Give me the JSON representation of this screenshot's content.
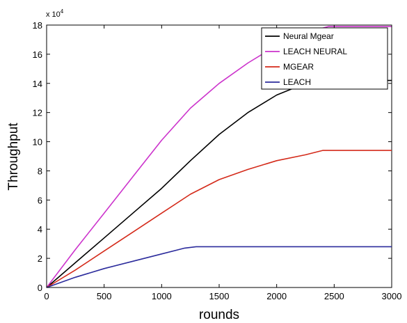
{
  "chart_data": {
    "type": "line",
    "xlabel": "rounds",
    "ylabel": "Throughput",
    "y_exponent_base": "x 10",
    "y_exponent_power": "4",
    "xlim": [
      0,
      3000
    ],
    "ylim": [
      0,
      18
    ],
    "xticks": [
      0,
      500,
      1000,
      1500,
      2000,
      2500,
      3000
    ],
    "yticks": [
      0,
      2,
      4,
      6,
      8,
      10,
      12,
      14,
      16,
      18
    ],
    "grid": false,
    "legend_position": "top-right",
    "series": [
      {
        "name": "Neural Mgear",
        "color": "#000000",
        "x": [
          0,
          250,
          500,
          750,
          1000,
          1250,
          1500,
          1750,
          2000,
          2250,
          2450,
          2500,
          3000
        ],
        "y": [
          0,
          1.7,
          3.4,
          5.1,
          6.8,
          8.7,
          10.5,
          12.0,
          13.2,
          14.0,
          14.2,
          14.2,
          14.2
        ]
      },
      {
        "name": "LEACH NEURAL",
        "color": "#cc33cc",
        "x": [
          0,
          250,
          500,
          750,
          1000,
          1250,
          1500,
          1750,
          2000,
          2250,
          2450,
          2500,
          3000
        ],
        "y": [
          0,
          2.6,
          5.1,
          7.6,
          10.1,
          12.3,
          14.0,
          15.4,
          16.6,
          17.5,
          17.9,
          17.9,
          17.9
        ]
      },
      {
        "name": "MGEAR",
        "color": "#d42a1a",
        "x": [
          0,
          250,
          500,
          750,
          1000,
          1250,
          1500,
          1750,
          2000,
          2250,
          2400,
          2500,
          3000
        ],
        "y": [
          0,
          1.2,
          2.5,
          3.8,
          5.1,
          6.4,
          7.4,
          8.1,
          8.7,
          9.1,
          9.4,
          9.4,
          9.4
        ]
      },
      {
        "name": "LEACH",
        "color": "#2b2b9c",
        "x": [
          0,
          250,
          500,
          750,
          1000,
          1200,
          1300,
          1500,
          2000,
          2500,
          3000
        ],
        "y": [
          0,
          0.7,
          1.3,
          1.8,
          2.3,
          2.7,
          2.8,
          2.8,
          2.8,
          2.8,
          2.8
        ]
      }
    ]
  }
}
